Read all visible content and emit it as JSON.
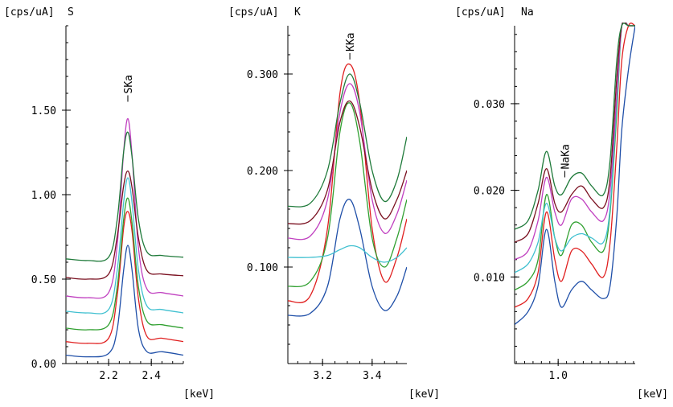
{
  "chart_data": [
    {
      "type": "line",
      "title": "S",
      "ylabel": "[cps/uA]",
      "xlabel": "[keV]",
      "xlim": [
        2.0,
        2.55
      ],
      "ylim": [
        0.0,
        2.0
      ],
      "yticks": [
        0.0,
        0.5,
        1.0,
        1.5
      ],
      "ytick_labels": [
        "0.00",
        "0.50",
        "1.00",
        "1.50"
      ],
      "xticks": [
        2.2,
        2.4
      ],
      "xtick_labels": [
        "2.2",
        "2.4"
      ],
      "annotation": {
        "label": "SKa",
        "x": 2.29,
        "y": 1.55
      },
      "x": [
        2.0,
        2.1,
        2.2,
        2.24,
        2.27,
        2.29,
        2.31,
        2.34,
        2.38,
        2.45,
        2.55
      ],
      "series": [
        {
          "color": "#1f4fa8",
          "values": [
            0.05,
            0.04,
            0.06,
            0.2,
            0.55,
            0.7,
            0.55,
            0.2,
            0.07,
            0.07,
            0.05
          ]
        },
        {
          "color": "#e02020",
          "values": [
            0.13,
            0.12,
            0.15,
            0.4,
            0.8,
            0.9,
            0.78,
            0.38,
            0.16,
            0.15,
            0.13
          ]
        },
        {
          "color": "#30a030",
          "values": [
            0.21,
            0.2,
            0.23,
            0.45,
            0.85,
            0.98,
            0.83,
            0.45,
            0.25,
            0.23,
            0.21
          ]
        },
        {
          "color": "#40c0d0",
          "values": [
            0.31,
            0.3,
            0.32,
            0.55,
            0.95,
            1.1,
            0.95,
            0.55,
            0.34,
            0.32,
            0.3
          ]
        },
        {
          "color": "#c040c0",
          "values": [
            0.4,
            0.39,
            0.42,
            0.7,
            1.25,
            1.45,
            1.23,
            0.68,
            0.44,
            0.42,
            0.4
          ]
        },
        {
          "color": "#7a1020",
          "values": [
            0.51,
            0.5,
            0.53,
            0.75,
            1.05,
            1.14,
            1.04,
            0.74,
            0.55,
            0.53,
            0.52
          ]
        },
        {
          "color": "#1f7a3a",
          "values": [
            0.62,
            0.61,
            0.63,
            0.85,
            1.25,
            1.37,
            1.22,
            0.85,
            0.66,
            0.64,
            0.63
          ]
        }
      ]
    },
    {
      "type": "line",
      "title": "K",
      "ylabel": "[cps/uA]",
      "xlabel": "[keV]",
      "xlim": [
        3.06,
        3.54
      ],
      "ylim": [
        0.0,
        0.35
      ],
      "yticks": [
        0.1,
        0.2,
        0.3
      ],
      "ytick_labels": [
        "0.100",
        "0.200",
        "0.300"
      ],
      "xticks": [
        3.2,
        3.4
      ],
      "xtick_labels": [
        "3.2",
        "3.4"
      ],
      "annotation": {
        "label": "KKa",
        "x": 3.31,
        "y": 0.315
      },
      "x": [
        3.06,
        3.15,
        3.22,
        3.27,
        3.31,
        3.35,
        3.4,
        3.45,
        3.5,
        3.54
      ],
      "series": [
        {
          "color": "#1f4fa8",
          "values": [
            0.05,
            0.052,
            0.08,
            0.15,
            0.17,
            0.14,
            0.08,
            0.055,
            0.07,
            0.1
          ]
        },
        {
          "color": "#e02020",
          "values": [
            0.065,
            0.07,
            0.14,
            0.28,
            0.31,
            0.27,
            0.14,
            0.085,
            0.11,
            0.15
          ]
        },
        {
          "color": "#30a030",
          "values": [
            0.08,
            0.085,
            0.13,
            0.24,
            0.27,
            0.23,
            0.13,
            0.1,
            0.13,
            0.17
          ]
        },
        {
          "color": "#40c0d0",
          "values": [
            0.11,
            0.11,
            0.112,
            0.118,
            0.122,
            0.12,
            0.11,
            0.105,
            0.11,
            0.12
          ]
        },
        {
          "color": "#c040c0",
          "values": [
            0.13,
            0.132,
            0.17,
            0.26,
            0.29,
            0.26,
            0.17,
            0.135,
            0.155,
            0.19
          ]
        },
        {
          "color": "#7a1020",
          "values": [
            0.145,
            0.148,
            0.18,
            0.25,
            0.272,
            0.245,
            0.18,
            0.15,
            0.17,
            0.2
          ]
        },
        {
          "color": "#1f7a3a",
          "values": [
            0.163,
            0.166,
            0.2,
            0.27,
            0.3,
            0.27,
            0.2,
            0.168,
            0.19,
            0.235
          ]
        }
      ]
    },
    {
      "type": "line",
      "title": "Na",
      "ylabel": "[cps/uA]",
      "xlabel": "[keV]",
      "xlim": [
        0.74,
        1.46
      ],
      "ylim": [
        0.0,
        0.039
      ],
      "yticks": [
        0.01,
        0.02,
        0.03
      ],
      "ytick_labels": [
        "0.010",
        "0.020",
        "0.030"
      ],
      "xticks": [
        1.0
      ],
      "xtick_labels": [
        "1.0"
      ],
      "annotation": {
        "label": "NaKa",
        "x": 1.04,
        "y": 0.0215
      },
      "x": [
        0.74,
        0.82,
        0.88,
        0.93,
        0.98,
        1.02,
        1.08,
        1.14,
        1.2,
        1.27,
        1.31,
        1.35,
        1.38,
        1.42,
        1.46
      ],
      "series": [
        {
          "color": "#1f4fa8",
          "values": [
            0.0045,
            0.006,
            0.009,
            0.0155,
            0.0095,
            0.0065,
            0.0085,
            0.0095,
            0.0085,
            0.0075,
            0.009,
            0.017,
            0.027,
            0.034,
            0.039
          ]
        },
        {
          "color": "#e02020",
          "values": [
            0.0065,
            0.0075,
            0.0105,
            0.0175,
            0.012,
            0.0095,
            0.013,
            0.013,
            0.0115,
            0.01,
            0.014,
            0.025,
            0.035,
            0.039,
            0.039
          ]
        },
        {
          "color": "#30a030",
          "values": [
            0.0085,
            0.0095,
            0.012,
            0.0195,
            0.0145,
            0.0125,
            0.016,
            0.016,
            0.014,
            0.013,
            0.0175,
            0.029,
            0.039,
            0.039,
            0.039
          ]
        },
        {
          "color": "#40c0d0",
          "values": [
            0.0105,
            0.0115,
            0.014,
            0.0185,
            0.0145,
            0.013,
            0.0145,
            0.015,
            0.0145,
            0.014,
            0.018,
            0.03,
            0.039,
            0.039,
            0.039
          ]
        },
        {
          "color": "#c040c0",
          "values": [
            0.012,
            0.013,
            0.0165,
            0.0215,
            0.0175,
            0.016,
            0.019,
            0.019,
            0.0175,
            0.0165,
            0.02,
            0.031,
            0.039,
            0.039,
            0.039
          ]
        },
        {
          "color": "#7a1020",
          "values": [
            0.014,
            0.015,
            0.0185,
            0.0225,
            0.0185,
            0.0175,
            0.0195,
            0.0205,
            0.019,
            0.018,
            0.0215,
            0.033,
            0.039,
            0.039,
            0.039
          ]
        },
        {
          "color": "#1f7a3a",
          "values": [
            0.0155,
            0.0165,
            0.02,
            0.0245,
            0.0205,
            0.0195,
            0.0215,
            0.022,
            0.0205,
            0.0195,
            0.0235,
            0.035,
            0.039,
            0.039,
            0.039
          ]
        }
      ]
    }
  ]
}
